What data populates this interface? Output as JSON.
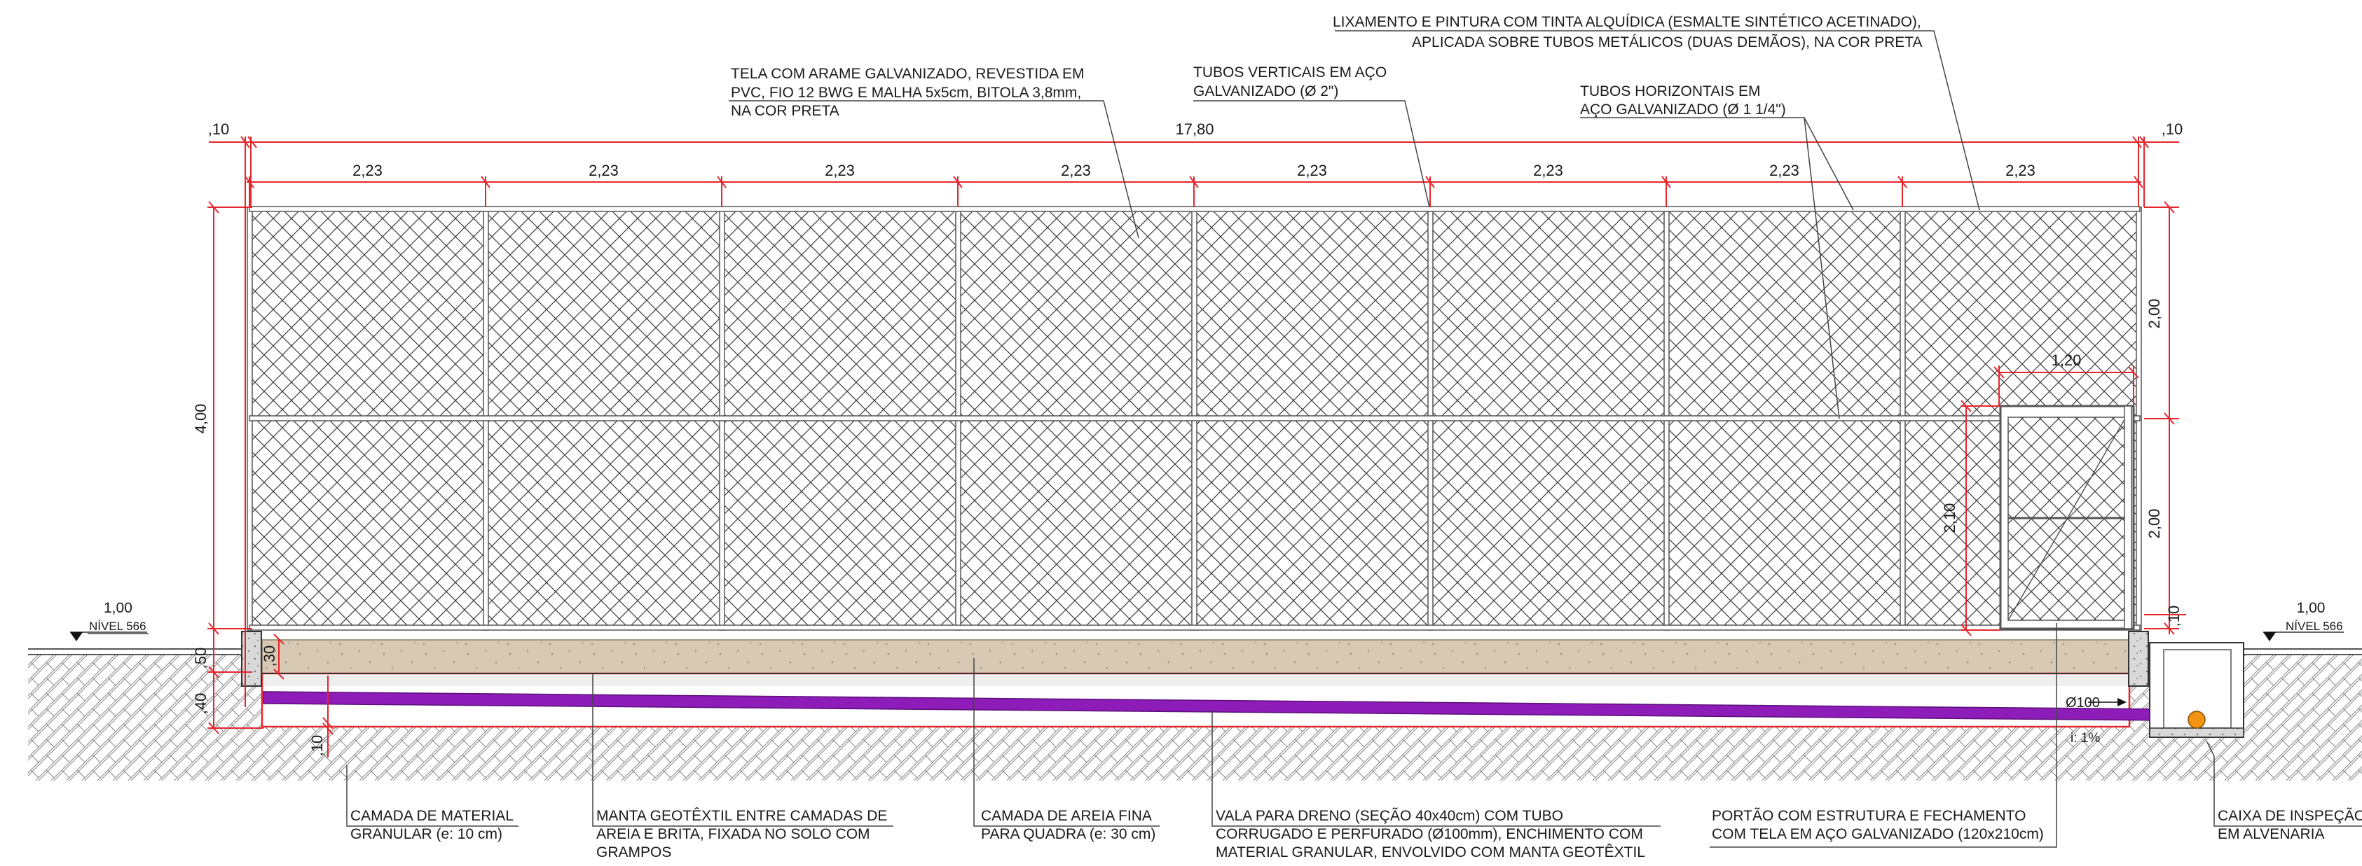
{
  "drawing": {
    "colors": {
      "dimension": "#e6262d",
      "frame": "#7c7c7c",
      "mesh": "#3d3d3d",
      "sand": "#d8c9b5",
      "drain_pipe": "#8d1cb8",
      "inspection_pipe": "#f39312",
      "text": "#1a1a1a"
    },
    "dimensions": {
      "total_length": "17,80",
      "end_offset_left": ",10",
      "end_offset_right": ",10",
      "panels": [
        "2,23",
        "2,23",
        "2,23",
        "2,23",
        "2,23",
        "2,23",
        "2,23",
        "2,23"
      ],
      "height_total": "4,00",
      "height_upper": "2,00",
      "height_lower": "2,00",
      "gate_width": "1,20",
      "gate_height": "2,10",
      "gate_clearance": ",10",
      "wall_height": ",50",
      "sand_layer": ",30",
      "trench_depth": ",40",
      "gravel_layer": ",10",
      "pipe_label": "Ø100",
      "slope": "i: 1%"
    },
    "levels": {
      "left_value": "1,00",
      "left_label": "NÍVEL 566",
      "right_value": "1,00",
      "right_label": "NÍVEL 566"
    },
    "notes": {
      "paint": [
        "LIXAMENTO E PINTURA COM TINTA ALQUÍDICA (ESMALTE SINTÉTICO ACETINADO),",
        "APLICADA SOBRE TUBOS METÁLICOS (DUAS DEMÃOS), NA COR PRETA"
      ],
      "mesh": [
        "TELA COM ARAME GALVANIZADO, REVESTIDA EM",
        "PVC, FIO 12 BWG E MALHA 5x5cm, BITOLA 3,8mm,",
        "NA COR PRETA"
      ],
      "vertical_tubes": [
        "TUBOS VERTICAIS EM AÇO",
        "GALVANIZADO (Ø 2\")"
      ],
      "horizontal_tubes": [
        "TUBOS HORIZONTAIS EM",
        "AÇO GALVANIZADO (Ø 1 1/4\")"
      ],
      "granular": [
        "CAMADA DE MATERIAL",
        "GRANULAR (e: 10 cm)"
      ],
      "geotextile": [
        "MANTA GEOTÊXTIL ENTRE CAMADAS DE",
        "AREIA E BRITA, FIXADA NO SOLO COM",
        "GRAMPOS"
      ],
      "sand": [
        "CAMADA DE AREIA FINA",
        "PARA QUADRA (e: 30 cm)"
      ],
      "drain": [
        "VALA PARA DRENO (SEÇÃO 40x40cm) COM TUBO",
        "CORRUGADO E PERFURADO (Ø100mm), ENCHIMENTO COM",
        "MATERIAL GRANULAR,  ENVOLVIDO COM MANTA GEOTÊXTIL"
      ],
      "gate": [
        "PORTÃO COM ESTRUTURA E FECHAMENTO",
        "COM TELA EM AÇO GALVANIZADO (120x210cm)"
      ],
      "inspection": [
        "CAIXA DE INSPEÇÃO",
        "EM ALVENARIA"
      ]
    }
  }
}
